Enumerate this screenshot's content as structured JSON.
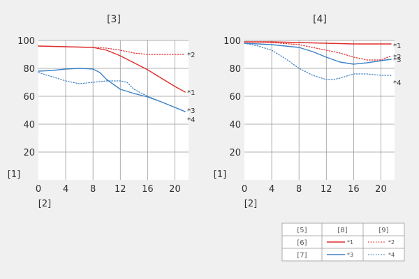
{
  "colors": {
    "background": "#f0f0f0",
    "plot_bg": "#ffffff",
    "grid": "#999999",
    "red": "#e02c2c",
    "blue": "#3d82c7",
    "legend_border": "#999999"
  },
  "legend": {
    "headers": [
      "[5]",
      "[8]",
      "[9]"
    ],
    "rows": [
      {
        "label": "[6]",
        "solid": "*1",
        "dotted": "*2",
        "color": "red"
      },
      {
        "label": "[7]",
        "solid": "*3",
        "dotted": "*4",
        "color": "blue"
      }
    ]
  },
  "chart_data": [
    {
      "type": "line",
      "title": "[3]",
      "ylabel": "[1]",
      "xlabel": "[2]",
      "xlim": [
        0,
        22
      ],
      "ylim": [
        0,
        100
      ],
      "x_ticks": [
        0,
        4,
        8,
        12,
        16,
        20
      ],
      "y_ticks": [
        20,
        40,
        60,
        80,
        100
      ],
      "grid": true,
      "series": [
        {
          "name": "*1",
          "color": "red",
          "style": "solid",
          "x": [
            0,
            4,
            8,
            10,
            12,
            14,
            16,
            18,
            20,
            21.5
          ],
          "y": [
            96,
            95.5,
            95,
            93,
            89,
            84,
            79,
            73,
            67,
            63
          ]
        },
        {
          "name": "*2",
          "color": "red",
          "style": "dotted",
          "x": [
            0,
            4,
            8,
            10,
            12,
            14,
            16,
            18,
            20,
            21.5
          ],
          "y": [
            96,
            95.5,
            95,
            94.5,
            93,
            91,
            90,
            90,
            90,
            90
          ]
        },
        {
          "name": "*3",
          "color": "blue",
          "style": "solid",
          "x": [
            0,
            2,
            4,
            6,
            8,
            9,
            10,
            12,
            14,
            16,
            18,
            20,
            21.5
          ],
          "y": [
            78,
            78.5,
            79.5,
            80,
            79.5,
            77,
            72,
            65,
            62,
            59.5,
            56,
            52,
            49
          ]
        },
        {
          "name": "*4",
          "color": "blue",
          "style": "dotted",
          "x": [
            0,
            2,
            4,
            6,
            8,
            10,
            12,
            13,
            14,
            16,
            18,
            20,
            21.5
          ],
          "y": [
            77,
            74,
            71,
            69,
            70,
            71,
            71,
            70,
            65,
            60,
            56,
            52,
            49
          ]
        }
      ]
    },
    {
      "type": "line",
      "title": "[4]",
      "ylabel": "[1]",
      "xlabel": "[2]",
      "xlim": [
        0,
        22
      ],
      "ylim": [
        0,
        100
      ],
      "x_ticks": [
        0,
        4,
        8,
        12,
        16,
        20
      ],
      "y_ticks": [
        20,
        40,
        60,
        80,
        100
      ],
      "grid": true,
      "series": [
        {
          "name": "*1",
          "color": "red",
          "style": "solid",
          "x": [
            0,
            4,
            8,
            12,
            16,
            20,
            21.5
          ],
          "y": [
            99,
            99,
            98.5,
            98,
            97.5,
            97.5,
            97.5
          ]
        },
        {
          "name": "*2",
          "color": "red",
          "style": "dotted",
          "x": [
            0,
            4,
            8,
            12,
            14,
            16,
            18,
            20,
            21.5
          ],
          "y": [
            99,
            98.5,
            97,
            93,
            91,
            88,
            86,
            86,
            89
          ]
        },
        {
          "name": "*3",
          "color": "blue",
          "style": "solid",
          "x": [
            0,
            4,
            8,
            10,
            12,
            14,
            16,
            18,
            20,
            21.5
          ],
          "y": [
            98,
            97,
            95,
            92,
            88,
            84.5,
            83,
            84,
            85.5,
            86.5
          ]
        },
        {
          "name": "*4",
          "color": "blue",
          "style": "dotted",
          "x": [
            0,
            2,
            4,
            6,
            8,
            10,
            12,
            13,
            14,
            16,
            18,
            20,
            21.5
          ],
          "y": [
            98,
            96,
            93,
            87,
            80,
            75,
            72,
            72,
            73,
            76,
            76,
            75,
            75
          ]
        }
      ]
    }
  ]
}
